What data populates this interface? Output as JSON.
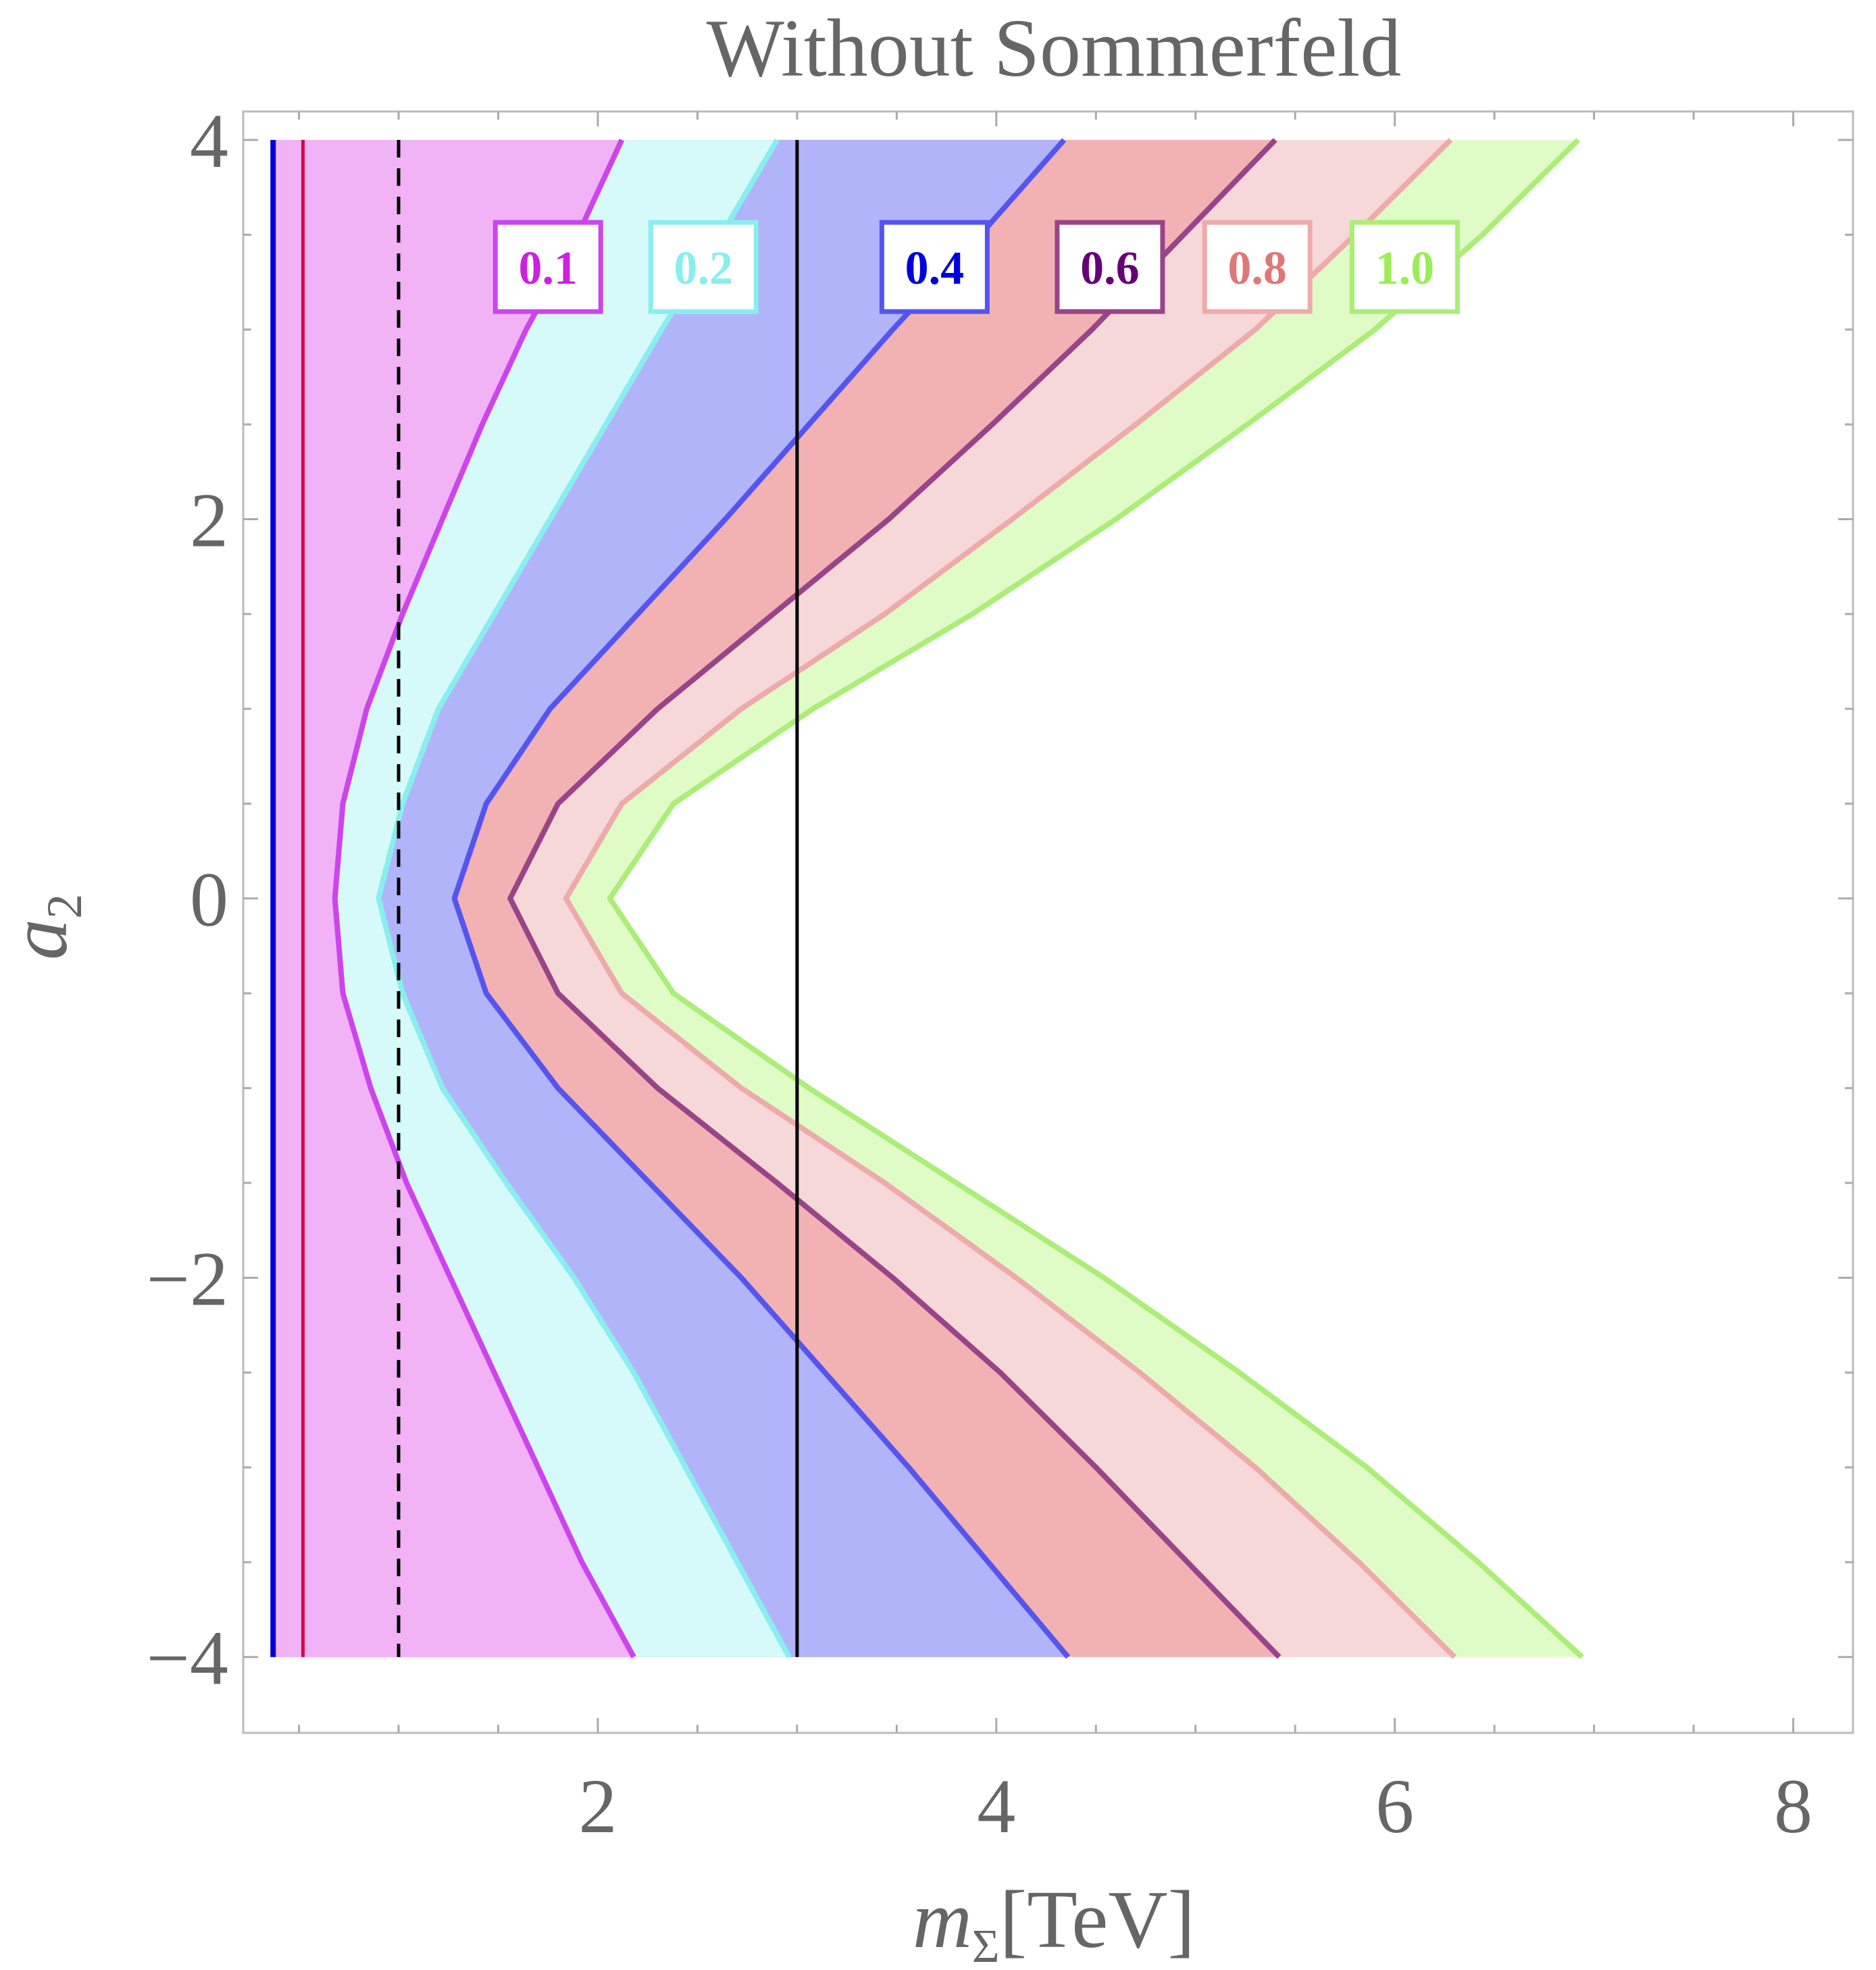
{
  "chart_data": {
    "type": "contour",
    "title": "Without Sommerfeld",
    "xlabel": {
      "main": "m",
      "sub": "Σ",
      "rest": "[TeV]"
    },
    "ylabel": {
      "main": "a",
      "sub": "2"
    },
    "xlim": [
      0.22,
      8.3
    ],
    "ylim": [
      -4.4,
      4.15
    ],
    "xticks": [
      2,
      4,
      6,
      8
    ],
    "yticks": [
      -4,
      -2,
      0,
      2,
      4
    ],
    "xtick_labels": [
      "2",
      "4",
      "6",
      "8"
    ],
    "ytick_labels": [
      "−4",
      "−2",
      "0",
      "2",
      "4"
    ],
    "frame_color": "#bbbbbb",
    "tick_label_color": "#666666",
    "contours": [
      {
        "level": "0.1",
        "line_color": "#cc44ee",
        "fill_color": "#f2b2f6",
        "label_color": "#cc22dd",
        "points": [
          [
            2.12,
            4
          ],
          [
            1.9,
            3.5
          ],
          [
            1.64,
            3
          ],
          [
            1.42,
            2.5
          ],
          [
            1.22,
            2
          ],
          [
            1.02,
            1.5
          ],
          [
            0.84,
            1
          ],
          [
            0.72,
            0.5
          ],
          [
            0.68,
            0
          ],
          [
            0.72,
            -0.5
          ],
          [
            0.86,
            -1
          ],
          [
            1.04,
            -1.5
          ],
          [
            1.26,
            -2
          ],
          [
            1.48,
            -2.5
          ],
          [
            1.7,
            -3
          ],
          [
            1.92,
            -3.5
          ],
          [
            2.18,
            -4
          ]
        ]
      },
      {
        "level": "0.2",
        "line_color": "#88eeee",
        "fill_color": "#d6fafa",
        "label_color": "#88eeee",
        "points": [
          [
            2.9,
            4
          ],
          [
            2.62,
            3.5
          ],
          [
            2.32,
            3
          ],
          [
            2.04,
            2.5
          ],
          [
            1.76,
            2
          ],
          [
            1.48,
            1.5
          ],
          [
            1.2,
            1
          ],
          [
            1.02,
            0.5
          ],
          [
            0.9,
            0
          ],
          [
            1.02,
            -0.5
          ],
          [
            1.22,
            -1
          ],
          [
            1.54,
            -1.5
          ],
          [
            1.88,
            -2
          ],
          [
            2.18,
            -2.5
          ],
          [
            2.44,
            -3
          ],
          [
            2.7,
            -3.5
          ],
          [
            2.96,
            -4
          ]
        ]
      },
      {
        "level": "0.4",
        "line_color": "#5555ee",
        "fill_color": "#b2b4fa",
        "label_color": "#0000dd",
        "points": [
          [
            4.34,
            4
          ],
          [
            3.92,
            3.5
          ],
          [
            3.48,
            3
          ],
          [
            3.06,
            2.5
          ],
          [
            2.64,
            2
          ],
          [
            2.2,
            1.5
          ],
          [
            1.76,
            1
          ],
          [
            1.44,
            0.5
          ],
          [
            1.28,
            0
          ],
          [
            1.44,
            -0.5
          ],
          [
            1.8,
            -1
          ],
          [
            2.26,
            -1.5
          ],
          [
            2.72,
            -2
          ],
          [
            3.14,
            -2.5
          ],
          [
            3.56,
            -3
          ],
          [
            3.96,
            -3.5
          ],
          [
            4.36,
            -4
          ]
        ]
      },
      {
        "level": "0.6",
        "line_color": "#994488",
        "fill_color": "#f2b2b4",
        "label_color": "#660077",
        "points": [
          [
            5.4,
            4
          ],
          [
            4.94,
            3.5
          ],
          [
            4.48,
            3
          ],
          [
            3.98,
            2.5
          ],
          [
            3.46,
            2
          ],
          [
            2.88,
            1.5
          ],
          [
            2.3,
            1
          ],
          [
            1.8,
            0.5
          ],
          [
            1.56,
            0
          ],
          [
            1.8,
            -0.5
          ],
          [
            2.3,
            -1
          ],
          [
            2.9,
            -1.5
          ],
          [
            3.48,
            -2
          ],
          [
            4.02,
            -2.5
          ],
          [
            4.5,
            -3
          ],
          [
            4.96,
            -3.5
          ],
          [
            5.42,
            -4
          ]
        ]
      },
      {
        "level": "0.8",
        "line_color": "#eeaaaa",
        "fill_color": "#f7d8d9",
        "label_color": "#e07777",
        "points": [
          [
            6.28,
            4
          ],
          [
            5.8,
            3.5
          ],
          [
            5.3,
            3
          ],
          [
            4.7,
            2.5
          ],
          [
            4.08,
            2
          ],
          [
            3.44,
            1.5
          ],
          [
            2.72,
            1
          ],
          [
            2.12,
            0.5
          ],
          [
            1.84,
            0
          ],
          [
            2.12,
            -0.5
          ],
          [
            2.72,
            -1
          ],
          [
            3.44,
            -1.5
          ],
          [
            4.1,
            -2
          ],
          [
            4.72,
            -2.5
          ],
          [
            5.3,
            -3
          ],
          [
            5.82,
            -3.5
          ],
          [
            6.3,
            -4
          ]
        ]
      },
      {
        "level": "1.0",
        "line_color": "#aaee77",
        "fill_color": "#dffcc6",
        "label_color": "#99ee55",
        "points": [
          [
            6.92,
            4
          ],
          [
            6.44,
            3.5
          ],
          [
            5.9,
            3
          ],
          [
            5.26,
            2.5
          ],
          [
            4.6,
            2
          ],
          [
            3.88,
            1.5
          ],
          [
            3.08,
            1
          ],
          [
            2.38,
            0.5
          ],
          [
            2.06,
            0
          ],
          [
            2.38,
            -0.5
          ],
          [
            3.06,
            -1
          ],
          [
            3.8,
            -1.5
          ],
          [
            4.54,
            -2
          ],
          [
            5.22,
            -2.5
          ],
          [
            5.86,
            -3
          ],
          [
            6.42,
            -3.5
          ],
          [
            6.94,
            -4
          ]
        ]
      }
    ],
    "label_boxes": [
      {
        "text": "0.1",
        "x": 1.75,
        "y": 3.33
      },
      {
        "text": "0.2",
        "x": 2.53,
        "y": 3.33
      },
      {
        "text": "0.4",
        "x": 3.69,
        "y": 3.33
      },
      {
        "text": "0.6",
        "x": 4.57,
        "y": 3.33
      },
      {
        "text": "0.8",
        "x": 5.31,
        "y": 3.33
      },
      {
        "text": "1.0",
        "x": 6.05,
        "y": 3.33
      }
    ],
    "vertical_lines": [
      {
        "x": 0.37,
        "color": "#0000dd",
        "style": "solid"
      },
      {
        "x": 0.52,
        "color": "#dd0044",
        "style": "solid"
      },
      {
        "x": 1.0,
        "color": "#000000",
        "style": "dashed"
      },
      {
        "x": 3.0,
        "color": "#000000",
        "style": "solid"
      }
    ],
    "line_span": [
      -4,
      4
    ],
    "grid": false
  }
}
